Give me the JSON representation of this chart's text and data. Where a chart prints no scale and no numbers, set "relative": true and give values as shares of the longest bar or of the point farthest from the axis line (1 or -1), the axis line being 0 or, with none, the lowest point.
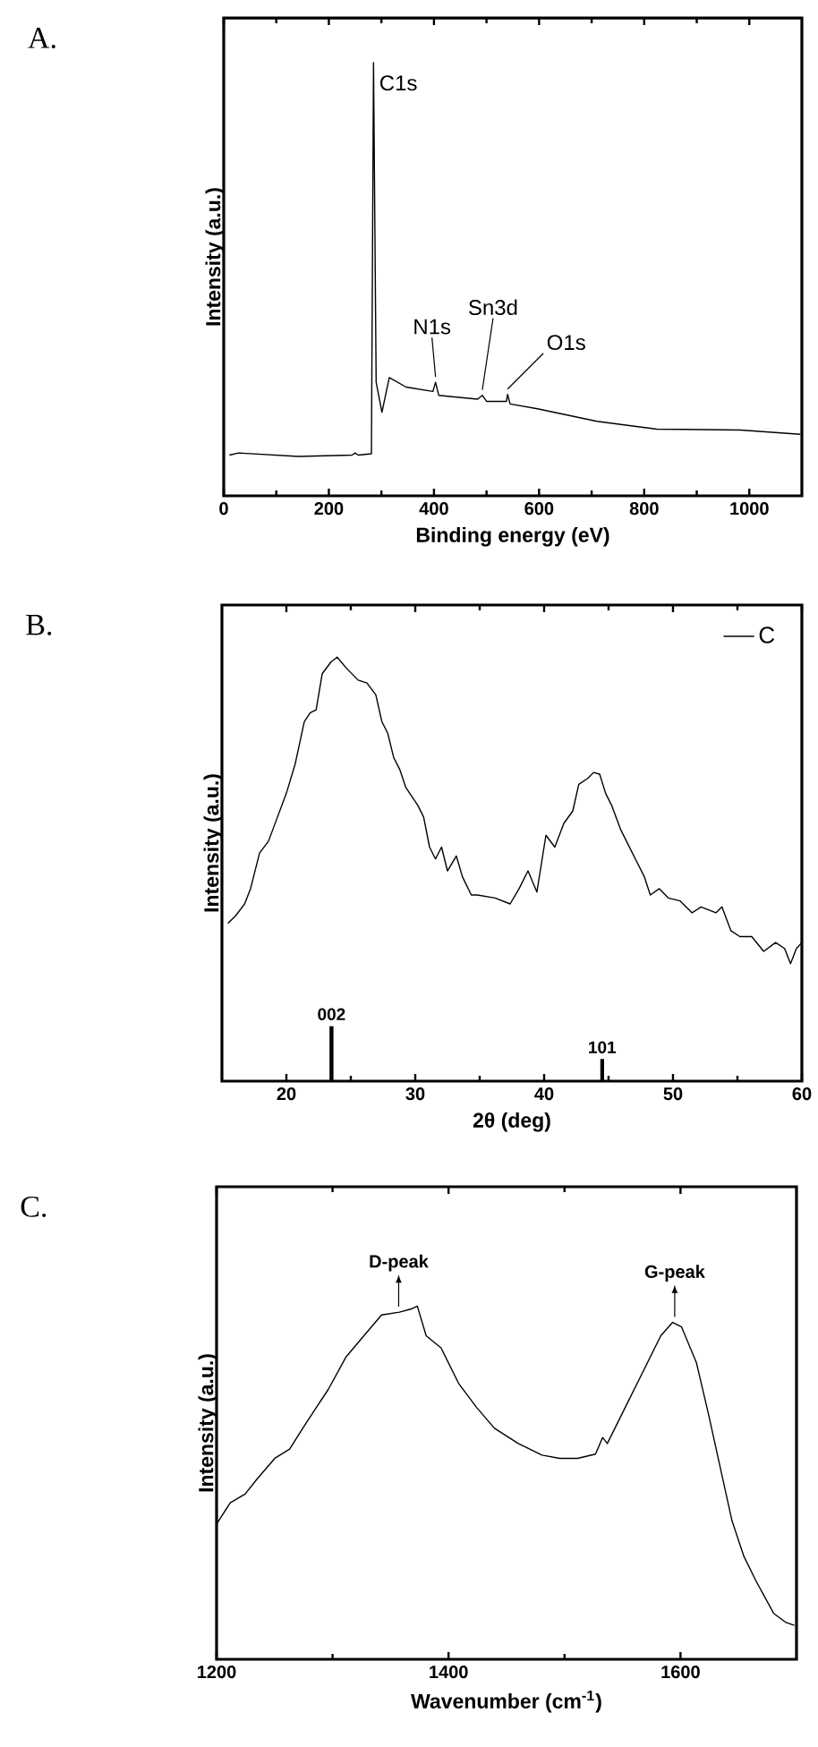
{
  "chart_data": [
    {
      "type": "line",
      "title": "A.",
      "xlabel": "Binding energy (eV)",
      "ylabel": "Intensity (a.u.)",
      "relative": true,
      "xlim": [
        0,
        1100
      ],
      "xticks": [
        0,
        200,
        400,
        600,
        800,
        1000
      ],
      "tick_labels": "x",
      "series": [
        {
          "color": "#000000",
          "x": [
            11,
            28,
            142,
            244,
            250,
            256,
            281,
            285,
            290,
            301,
            315,
            347,
            398,
            403,
            409,
            483,
            492,
            500,
            538,
            540,
            545,
            597,
            710,
            824,
            983,
            1097
          ],
          "values": [
            0.094,
            0.099,
            0.091,
            0.094,
            0.099,
            0.094,
            0.097,
            1.0,
            0.262,
            0.193,
            0.273,
            0.251,
            0.241,
            0.262,
            0.232,
            0.223,
            0.232,
            0.218,
            0.218,
            0.234,
            0.212,
            0.201,
            0.172,
            0.154,
            0.152,
            0.142
          ]
        }
      ],
      "annotations": [
        {
          "text": "C1s",
          "x": 285,
          "y": 1.0
        },
        {
          "text": "N1s",
          "x": 403,
          "y": 0.262
        },
        {
          "text": "Sn3d",
          "x": 492,
          "y": 0.232
        },
        {
          "text": "O1s",
          "x": 540,
          "y": 0.234
        }
      ]
    },
    {
      "type": "line",
      "title": "B.",
      "xlabel": "2θ (deg)",
      "ylabel": "Intensity (a.u.)",
      "relative": true,
      "xlim": [
        15,
        60
      ],
      "xticks": [
        20,
        30,
        40,
        50,
        60
      ],
      "tick_labels": "x",
      "legend": "top right",
      "series": [
        {
          "name": "C",
          "color": "#000000",
          "x": [
            15.46,
            16.06,
            16.76,
            17.22,
            17.92,
            18.61,
            19.31,
            20.0,
            20.69,
            21.39,
            21.85,
            22.31,
            22.78,
            23.47,
            23.94,
            24.63,
            25.56,
            26.25,
            26.94,
            27.41,
            27.87,
            28.33,
            28.8,
            29.26,
            29.72,
            30.19,
            30.65,
            31.11,
            31.57,
            32.04,
            32.5,
            33.19,
            33.66,
            34.35,
            34.81,
            36.2,
            37.36,
            38.06,
            38.75,
            39.44,
            40.14,
            40.83,
            41.53,
            42.22,
            42.69,
            43.38,
            43.84,
            44.31,
            44.77,
            45.23,
            45.93,
            46.39,
            47.08,
            47.78,
            48.24,
            48.94,
            49.63,
            50.56,
            51.48,
            52.18,
            53.33,
            53.8,
            54.49,
            55.19,
            56.11,
            57.04,
            57.96,
            58.66,
            59.12,
            59.58,
            60.0
          ],
          "values": [
            0.372,
            0.39,
            0.418,
            0.454,
            0.538,
            0.566,
            0.623,
            0.679,
            0.749,
            0.848,
            0.869,
            0.876,
            0.961,
            0.989,
            1.0,
            0.975,
            0.946,
            0.939,
            0.911,
            0.848,
            0.82,
            0.763,
            0.735,
            0.693,
            0.672,
            0.651,
            0.623,
            0.552,
            0.524,
            0.552,
            0.496,
            0.531,
            0.482,
            0.439,
            0.439,
            0.432,
            0.418,
            0.454,
            0.496,
            0.446,
            0.58,
            0.552,
            0.608,
            0.637,
            0.7,
            0.714,
            0.728,
            0.724,
            0.679,
            0.651,
            0.594,
            0.566,
            0.524,
            0.482,
            0.439,
            0.454,
            0.432,
            0.425,
            0.397,
            0.411,
            0.397,
            0.411,
            0.355,
            0.341,
            0.341,
            0.306,
            0.327,
            0.313,
            0.277,
            0.313,
            0.327
          ]
        },
        {
          "type": "bar",
          "color": "#000000",
          "x": [
            23.5,
            44.5
          ],
          "values": [
            0.13,
            0.052
          ]
        }
      ],
      "annotations": [
        {
          "text": "002",
          "x": 23.5,
          "y": 0.13
        },
        {
          "text": "101",
          "x": 44.5,
          "y": 0.052
        }
      ]
    },
    {
      "type": "line",
      "title": "C.",
      "xlabel": "Wavenumber (cm$^{-1}$)",
      "ylabel": "Intensity (a.u.)",
      "relative": true,
      "xlim": [
        1200,
        1700
      ],
      "xticks": [
        1200,
        1400,
        1600
      ],
      "tick_labels": "x",
      "series": [
        {
          "color": "#000000",
          "x": [
            1200,
            1211.8,
            1224.6,
            1234.8,
            1250.2,
            1263.0,
            1275.8,
            1286.0,
            1296.3,
            1311.6,
            1327.0,
            1342.3,
            1357.7,
            1367.9,
            1373.1,
            1380.7,
            1393.5,
            1408.9,
            1424.2,
            1439.6,
            1460.1,
            1480.6,
            1495.9,
            1511.3,
            1526.7,
            1532.8,
            1536.9,
            1552.3,
            1567.6,
            1583.0,
            1593.2,
            1600.9,
            1613.7,
            1624.0,
            1634.2,
            1644.4,
            1654.7,
            1664.9,
            1680.3,
            1690.5,
            1698.2
          ],
          "values": [
            0.383,
            0.443,
            0.468,
            0.51,
            0.569,
            0.595,
            0.662,
            0.713,
            0.764,
            0.856,
            0.916,
            0.975,
            0.983,
            0.992,
            1.0,
            0.916,
            0.882,
            0.78,
            0.713,
            0.654,
            0.611,
            0.578,
            0.569,
            0.569,
            0.581,
            0.628,
            0.611,
            0.713,
            0.814,
            0.916,
            0.954,
            0.941,
            0.84,
            0.696,
            0.544,
            0.392,
            0.291,
            0.223,
            0.13,
            0.105,
            0.096
          ]
        }
      ],
      "annotations": [
        {
          "text": "D-peak",
          "x": 1357,
          "y": 0.983
        },
        {
          "text": "G-peak",
          "x": 1595,
          "y": 0.954
        }
      ]
    }
  ]
}
